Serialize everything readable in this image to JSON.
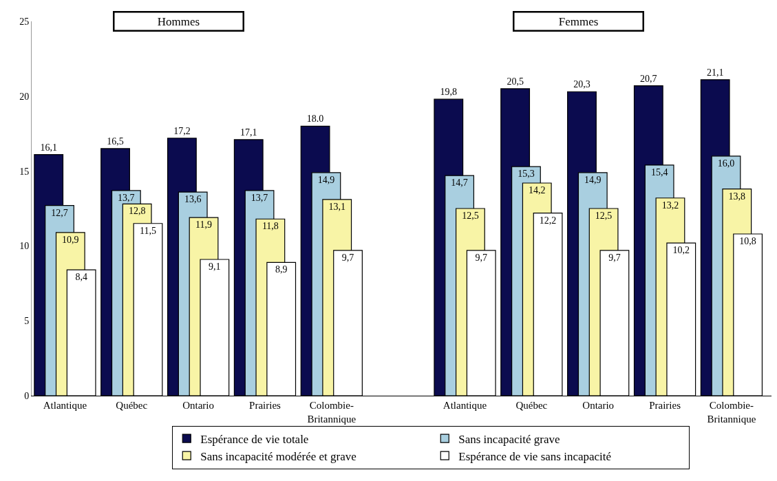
{
  "chart_data": {
    "type": "bar",
    "categories": [
      "Atlantique",
      "Québec",
      "Ontario",
      "Prairies",
      "Colombie-\nBritannique",
      null,
      "Atlantique",
      "Québec",
      "Ontario",
      "Prairies",
      "Colombie-\nBritannique"
    ],
    "series": [
      {
        "name": "Espérance de vie totale",
        "color": "#0b0b4f",
        "values": [
          16.1,
          16.5,
          17.2,
          17.1,
          18.0,
          null,
          19.8,
          20.5,
          20.3,
          20.7,
          21.1
        ],
        "value_labels": [
          "16,1",
          "16,5",
          "17,2",
          "17,1",
          "18.0",
          null,
          "19,8",
          "20,5",
          "20,3",
          "20,7",
          "21,1"
        ]
      },
      {
        "name": "Sans incapacité grave",
        "color": "#a9cfe0",
        "values": [
          12.7,
          13.7,
          13.6,
          13.7,
          14.9,
          null,
          14.7,
          15.3,
          14.9,
          15.4,
          16.0
        ],
        "value_labels": [
          "12,7",
          "13,7",
          "13,6",
          "13,7",
          "14,9",
          null,
          "14,7",
          "15,3",
          "14,9",
          "15,4",
          "16,0"
        ]
      },
      {
        "name": "Sans incapacité modérée et grave",
        "color": "#f8f4a6",
        "values": [
          10.9,
          12.8,
          11.9,
          11.8,
          13.1,
          null,
          12.5,
          14.2,
          12.5,
          13.2,
          13.8
        ],
        "value_labels": [
          "10,9",
          "12,8",
          "11,9",
          "11,8",
          "13,1",
          null,
          "12,5",
          "14,2",
          "12,5",
          "13,2",
          "13,8"
        ]
      },
      {
        "name": "Espérance de vie sans incapacité",
        "color": "#ffffff",
        "values": [
          8.4,
          11.5,
          9.1,
          8.9,
          9.7,
          null,
          9.7,
          12.2,
          9.7,
          10.2,
          10.8
        ],
        "value_labels": [
          "8,4",
          "11,5",
          "9,1",
          "8,9",
          "9,7",
          null,
          "9,7",
          "12,2",
          "9,7",
          "10,2",
          "10,8"
        ]
      }
    ],
    "ylim": [
      0,
      25
    ],
    "yticks": [
      0,
      5,
      10,
      15,
      20,
      25
    ],
    "annotations": [
      "Hommes",
      "Femmes"
    ],
    "legend": "bottom",
    "grid": false
  }
}
